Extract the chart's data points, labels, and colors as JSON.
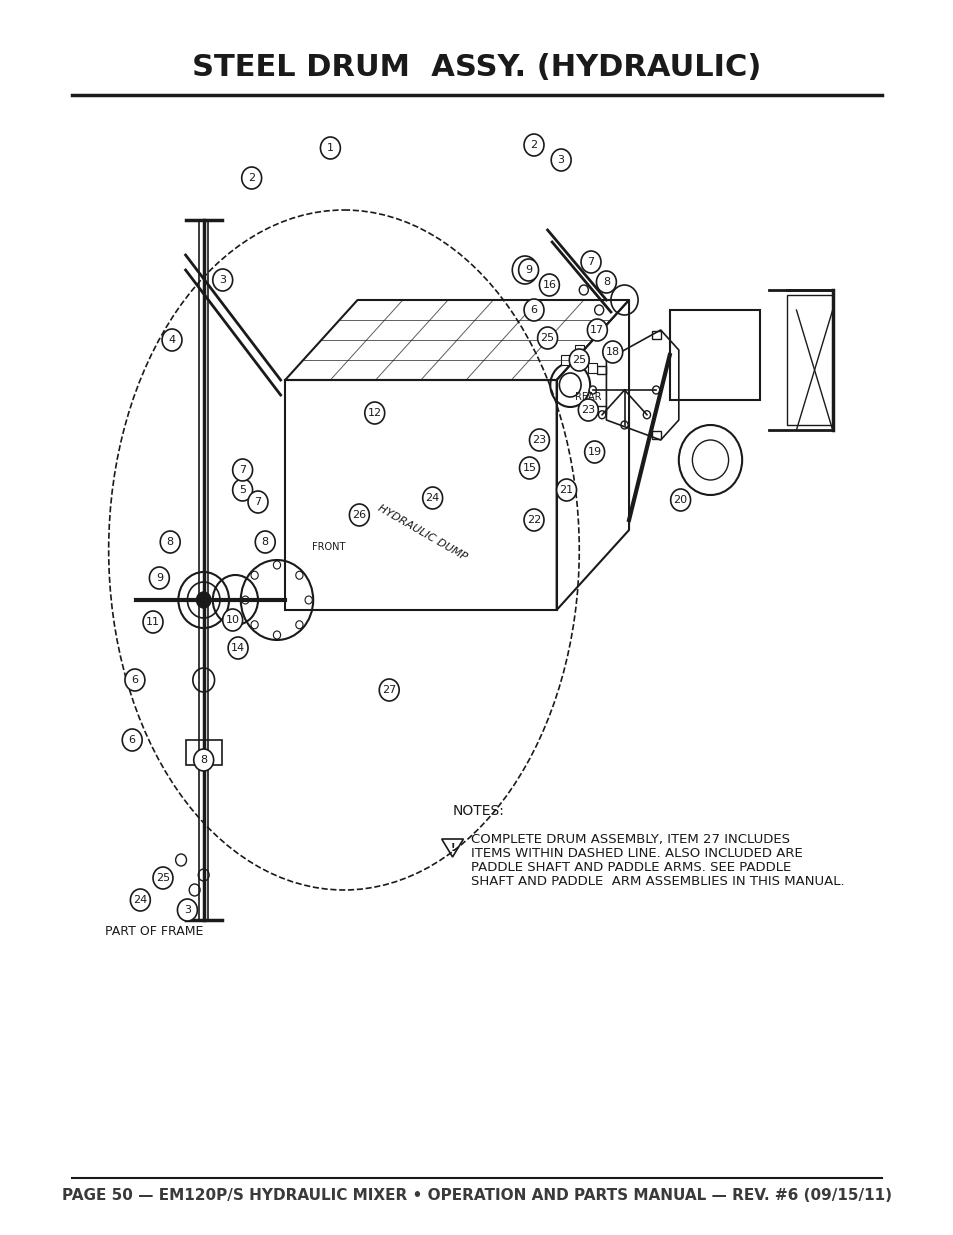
{
  "title": "STEEL DRUM  ASSY. (HYDRAULIC)",
  "footer": "PAGE 50 — EM120P/S HYDRAULIC MIXER • OPERATION AND PARTS MANUAL — REV. #6 (09/15/11)",
  "notes_header": "NOTES:",
  "notes_line1": "COMPLETE DRUM ASSEMBLY, ITEM 27 INCLUDES",
  "notes_line2": "ITEMS WITHIN DASHED LINE. ALSO INCLUDED ARE",
  "notes_line3": "PADDLE SHAFT AND PADDLE ARMS. SEE PADDLE",
  "notes_line4": "SHAFT AND PADDLE  ARM ASSEMBLIES IN THIS MANUAL.",
  "part_of_frame": "PART OF FRAME",
  "label_front": "FRONT",
  "label_rear": "REAR",
  "label_hydraulic_dump": "HYDRAULIC DUMP",
  "bg_color": "#ffffff",
  "line_color": "#1a1a1a",
  "title_color": "#1a1a1a",
  "footer_color": "#3a3a3a",
  "title_fontsize": 22,
  "footer_fontsize": 11,
  "notes_fontsize": 10
}
